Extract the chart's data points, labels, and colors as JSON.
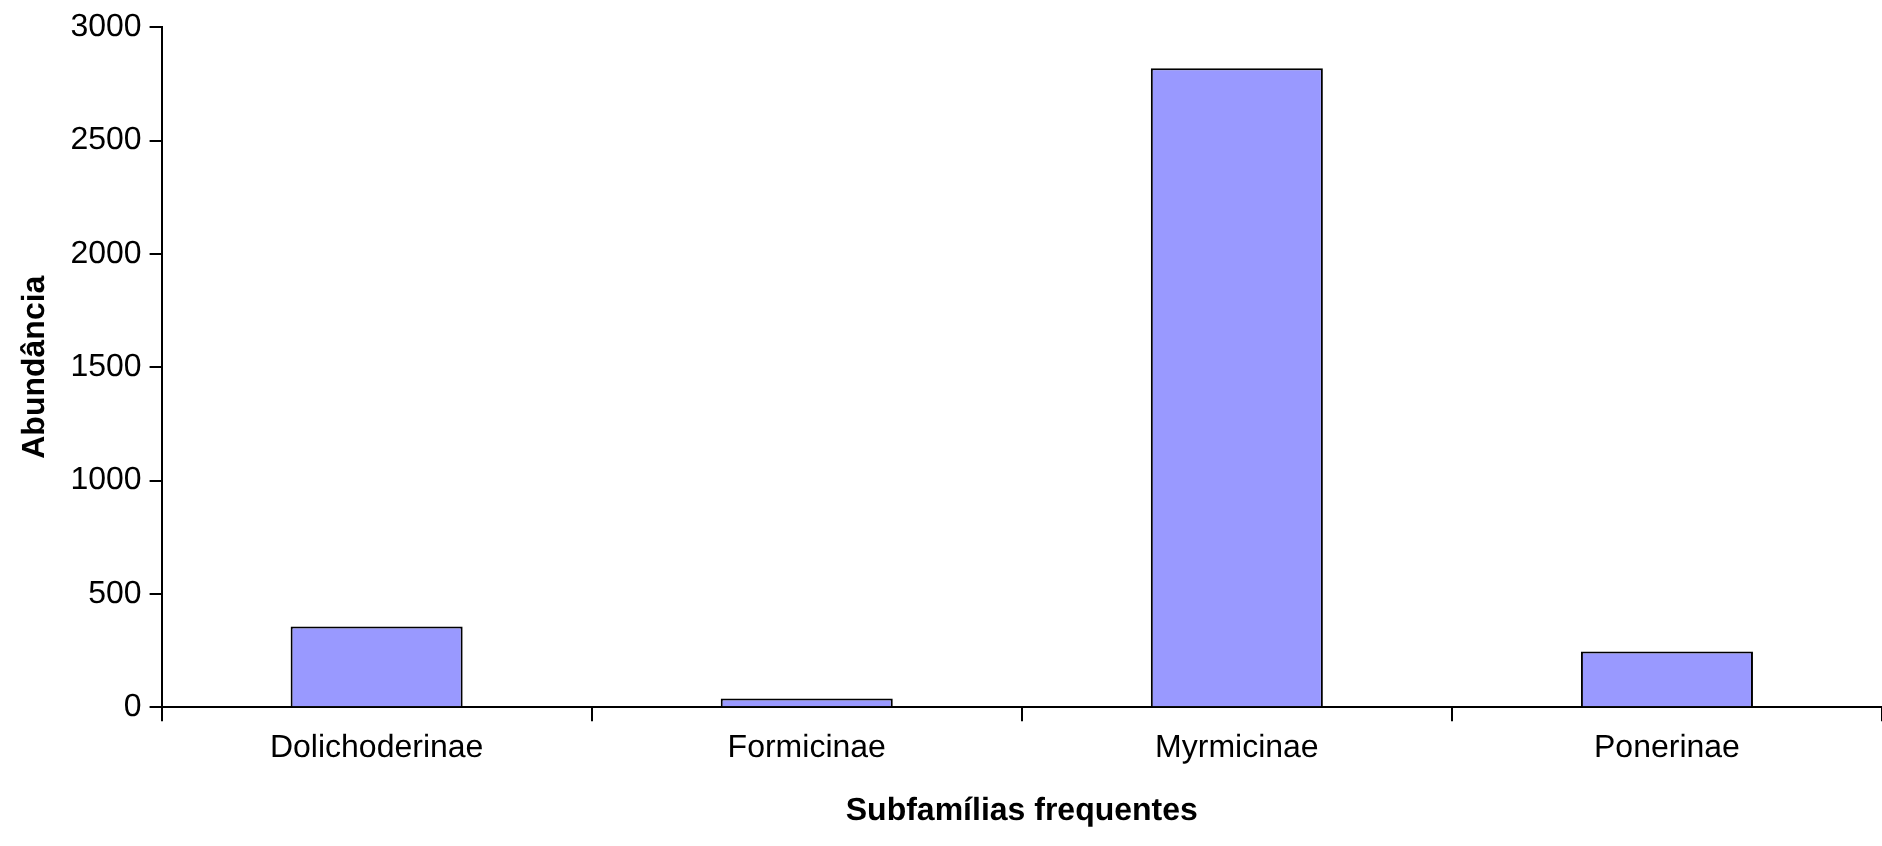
{
  "chart_data": {
    "type": "bar",
    "xlabel": "Subfamílias frequentes",
    "ylabel": "Abundância",
    "categories": [
      "Dolichoderinae",
      "Formicinae",
      "Myrmicinae",
      "Ponerinae"
    ],
    "values": [
      356,
      38,
      2819,
      246
    ],
    "color": "#9999ff",
    "ylim": [
      0,
      3000
    ],
    "yticks": [
      0,
      500,
      1000,
      1500,
      2000,
      2500,
      3000
    ],
    "grid": false,
    "legend": false
  }
}
